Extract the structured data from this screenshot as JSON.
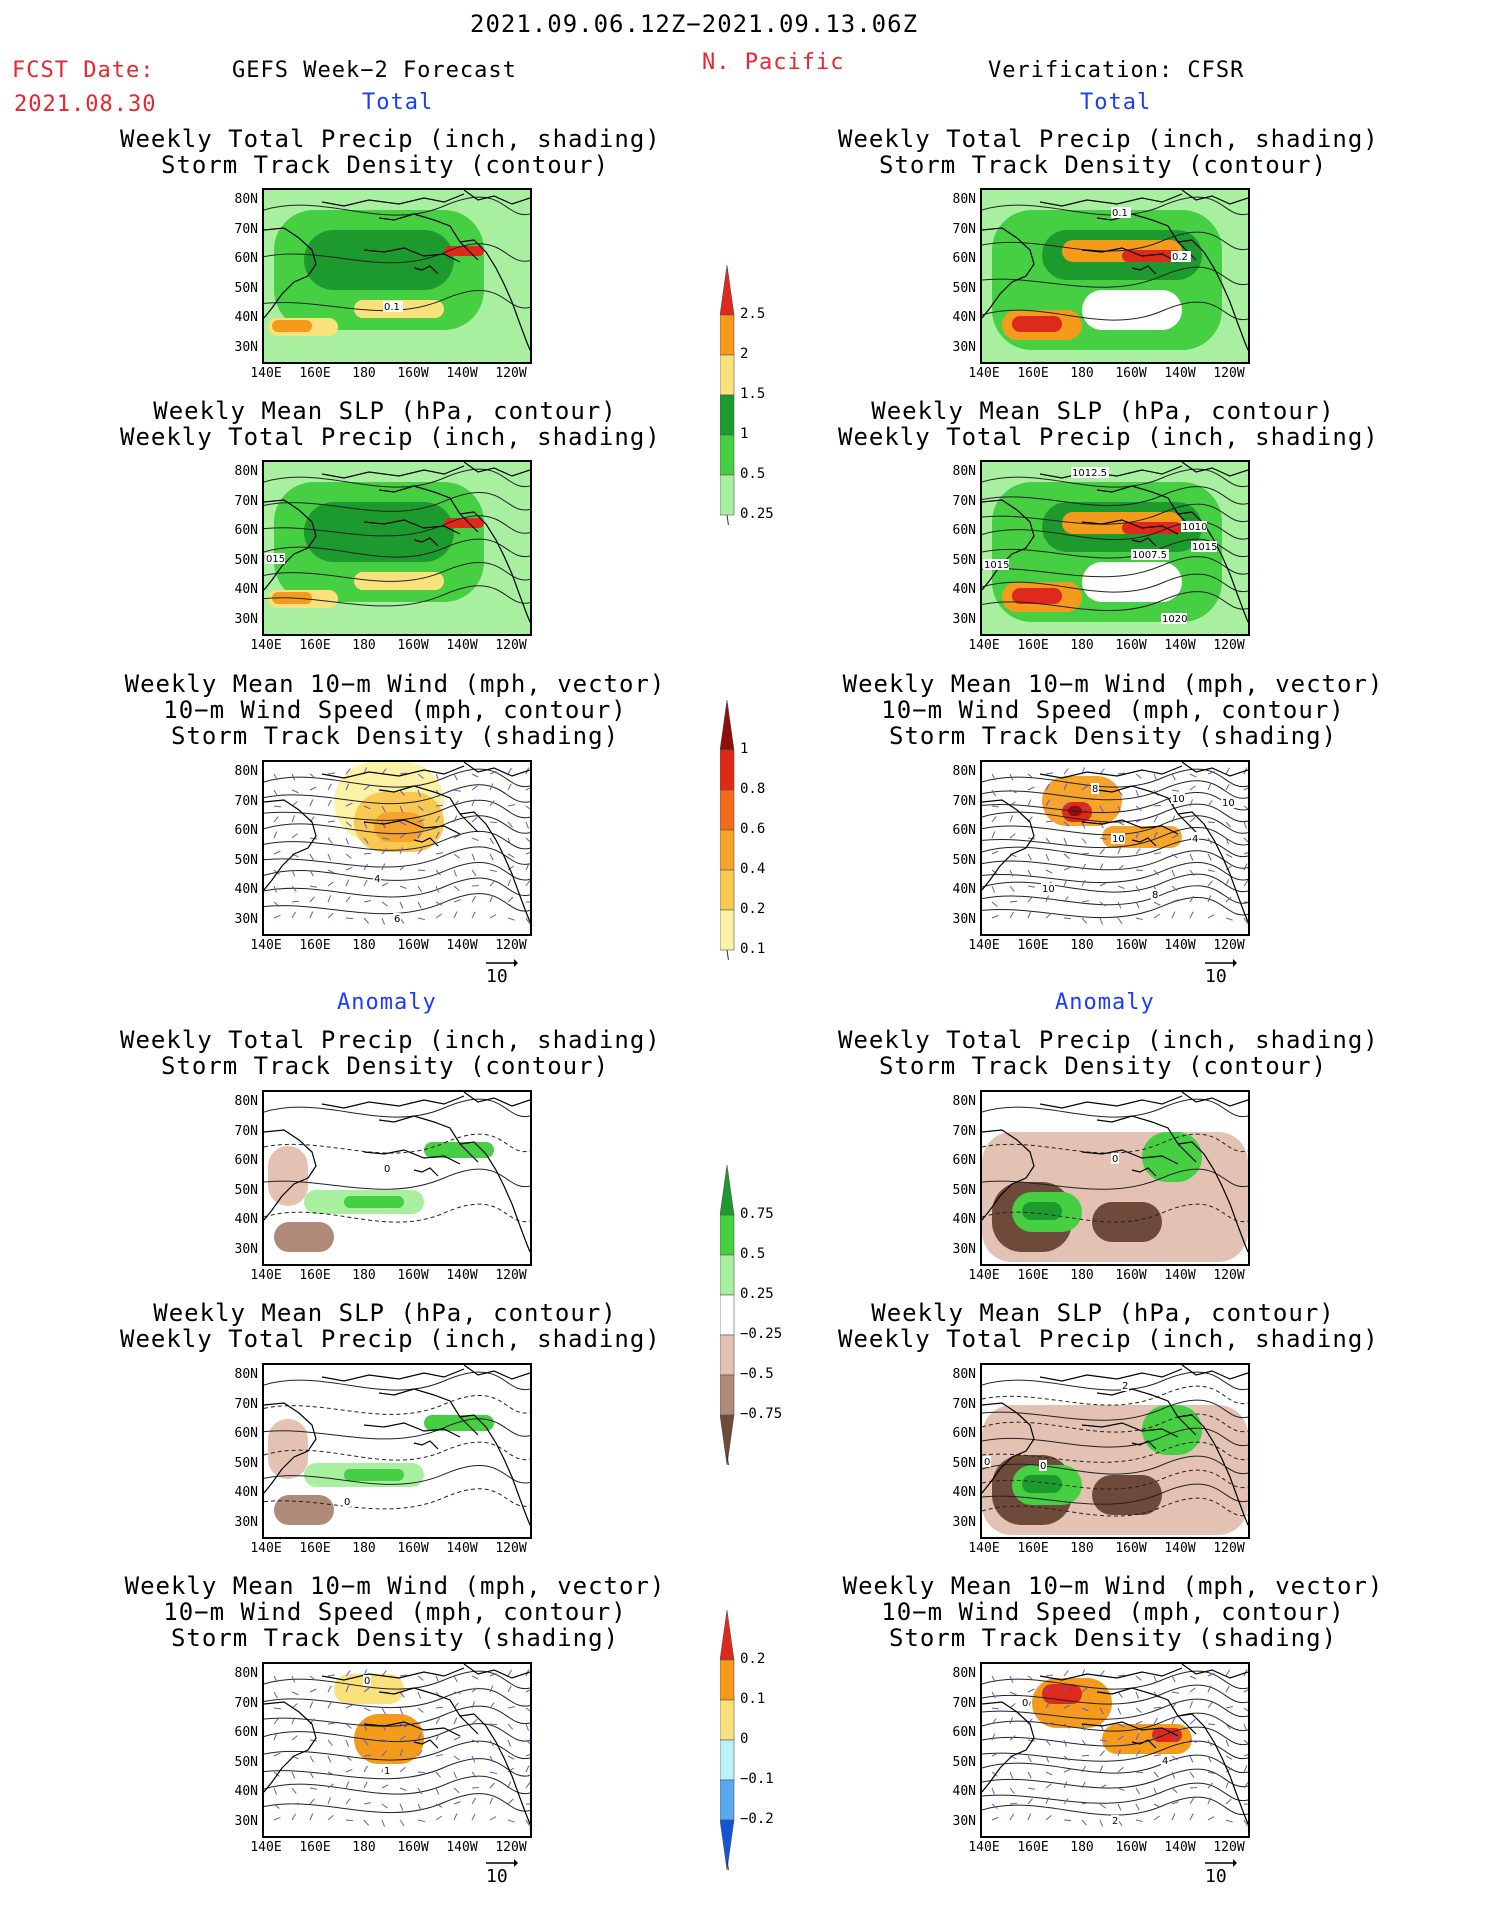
{
  "header": {
    "date_range": "2021.09.06.12Z−2021.09.13.06Z",
    "fcst_label": "FCST Date:",
    "fcst_date": "2021.08.30",
    "left_title": "GEFS Week−2 Forecast",
    "region": "N. Pacific",
    "right_title": "Verification: CFSR"
  },
  "sections": {
    "total": "Total",
    "anomaly": "Anomaly"
  },
  "panel_titles": {
    "precip_storm": [
      "Weekly Total Precip (inch, shading)",
      "Storm Track Density (contour)"
    ],
    "slp_precip": [
      "Weekly Mean SLP (hPa, contour)",
      "Weekly Total Precip (inch, shading)"
    ],
    "wind_storm": [
      "Weekly Mean 10−m Wind (mph, vector)",
      "10−m Wind Speed (mph, contour)",
      "Storm Track Density (shading)"
    ]
  },
  "axes": {
    "lat_ticks": [
      "80N",
      "70N",
      "60N",
      "50N",
      "40N",
      "30N"
    ],
    "lon_ticks": [
      "140E",
      "160E",
      "180",
      "160W",
      "140W",
      "120W"
    ]
  },
  "wind_ref": "10",
  "map_labels": {
    "p1L": [
      "0.1"
    ],
    "p1R": [
      "0.1",
      "0.2"
    ],
    "p2L": [
      "015"
    ],
    "p2R": [
      "1012.5",
      "1010",
      "1015",
      "1007.5",
      "1015",
      "1020"
    ],
    "p3L": [
      "4",
      "6"
    ],
    "p3R": [
      "8",
      "10",
      "10",
      "10",
      "8",
      "10",
      "4"
    ],
    "p4L": [
      "0"
    ],
    "p4R": [
      "0"
    ],
    "p5L": [
      "0"
    ],
    "p5R": [
      "2",
      "0",
      "0"
    ],
    "p6L": [
      "0",
      "1"
    ],
    "p6R": [
      "0",
      "2",
      "4"
    ]
  },
  "colorbars": {
    "total_precip": {
      "labels": [
        "2.5",
        "2",
        "1.5",
        "1",
        "0.5",
        "0.25"
      ],
      "colors": [
        "#e0291d",
        "#f59b1c",
        "#f9e27c",
        "#1d9a2e",
        "#46cf43",
        "#a8efa0"
      ]
    },
    "storm_density": {
      "labels": [
        "1",
        "0.8",
        "0.6",
        "0.4",
        "0.2",
        "0.1"
      ],
      "colors": [
        "#8f0f0f",
        "#e02a16",
        "#f26a1b",
        "#f6a42c",
        "#f8c850",
        "#fbf2a6"
      ]
    },
    "precip_anom": {
      "labels": [
        "0.75",
        "0.5",
        "0.25",
        "−0.25",
        "−0.5",
        "−0.75"
      ],
      "colors": [
        "#1d9a2e",
        "#46cf43",
        "#a8efa0",
        "#ffffff",
        "#e3c2b4",
        "#b08a78",
        "#6e4a3a"
      ]
    },
    "storm_anom": {
      "labels": [
        "0.2",
        "0.1",
        "0",
        "−0.1",
        "−0.2"
      ],
      "colors": [
        "#e0291d",
        "#f59b1c",
        "#f9e27c",
        "#bdf0f8",
        "#5ba8f0",
        "#1256d6"
      ]
    }
  }
}
